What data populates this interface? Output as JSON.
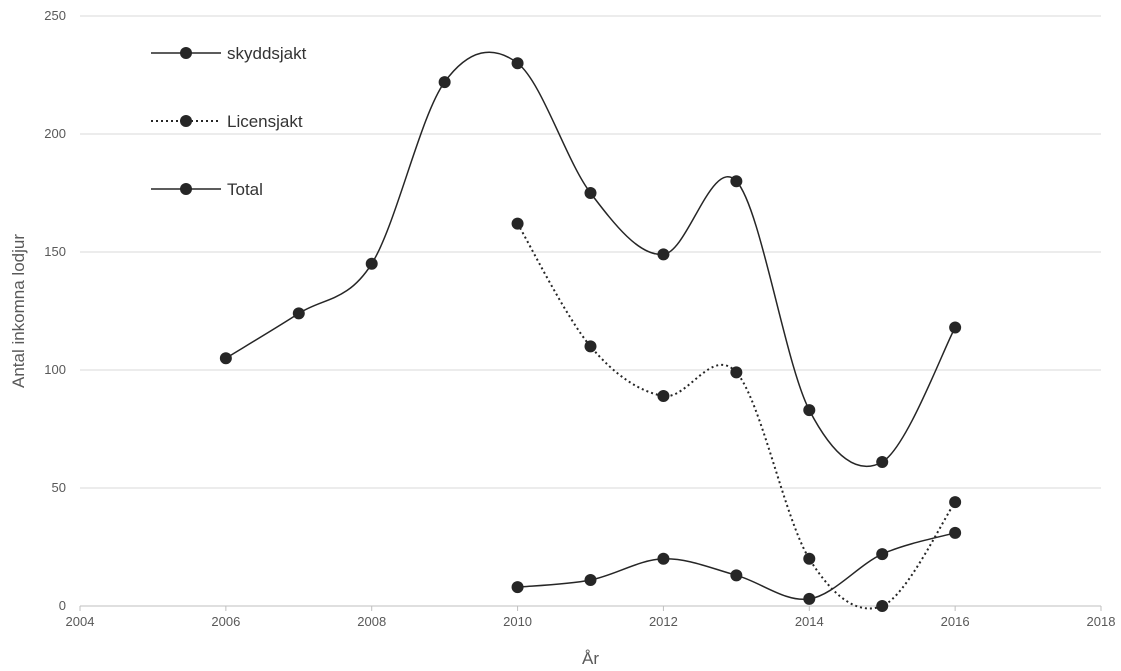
{
  "chart_data": {
    "type": "scatter",
    "title": "",
    "xlabel": "År",
    "ylabel": "Antal inkomna lodjur",
    "xlim": [
      2004,
      2018
    ],
    "ylim": [
      0,
      250
    ],
    "x_ticks": [
      "2004",
      "2006",
      "2008",
      "2010",
      "2012",
      "2014",
      "2016",
      "2018"
    ],
    "y_ticks": [
      "0",
      "50",
      "100",
      "150",
      "200",
      "250"
    ],
    "grid": "horizontal",
    "legend_position": "top-left",
    "series": [
      {
        "name": "skyddsjakt",
        "line_style": "solid",
        "color": "#262626",
        "points": [
          [
            2010,
            8
          ],
          [
            2011,
            11
          ],
          [
            2012,
            20
          ],
          [
            2013,
            13
          ],
          [
            2014,
            3
          ],
          [
            2015,
            22
          ],
          [
            2016,
            31
          ]
        ]
      },
      {
        "name": "Licensjakt",
        "line_style": "dotted",
        "color": "#262626",
        "points": [
          [
            2010,
            162
          ],
          [
            2011,
            110
          ],
          [
            2012,
            89
          ],
          [
            2013,
            99
          ],
          [
            2014,
            20
          ],
          [
            2015,
            0
          ],
          [
            2016,
            44
          ]
        ]
      },
      {
        "name": "Total",
        "line_style": "solid",
        "color": "#262626",
        "points": [
          [
            2006,
            105
          ],
          [
            2007,
            124
          ],
          [
            2008,
            145
          ],
          [
            2009,
            222
          ],
          [
            2010,
            230
          ],
          [
            2011,
            175
          ],
          [
            2012,
            149
          ],
          [
            2013,
            180
          ],
          [
            2014,
            83
          ],
          [
            2015,
            61
          ],
          [
            2016,
            118
          ]
        ]
      }
    ]
  }
}
